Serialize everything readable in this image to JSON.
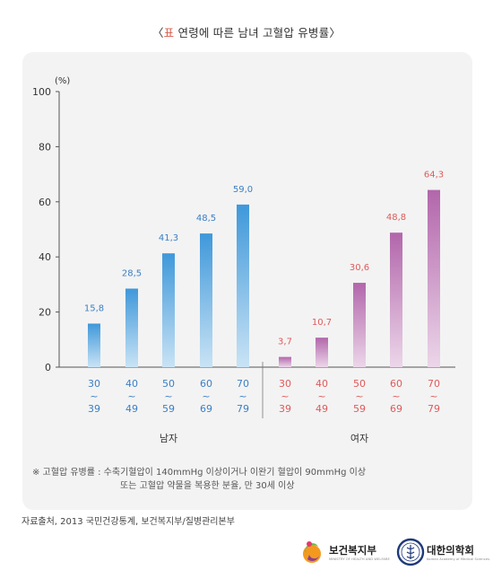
{
  "title": {
    "open": "〈",
    "marker": "표",
    "text": " 연령에 따른 남녀 고혈압 유병률",
    "close": "〉"
  },
  "colors": {
    "male_bar": "#4aa0dc",
    "female_bar": "#b468ac",
    "male_label": "#3b7fc4",
    "female_label": "#e05a5a",
    "title_marker": "#d9604f"
  },
  "chart_data": {
    "type": "bar",
    "ylabel": "(%)",
    "ylim": [
      0,
      100
    ],
    "yticks": [
      "0",
      "20",
      "40",
      "60",
      "80",
      "100"
    ],
    "groups": [
      {
        "name": "남자",
        "categories": [
          [
            "30",
            "~",
            "39"
          ],
          [
            "40",
            "~",
            "49"
          ],
          [
            "50",
            "~",
            "59"
          ],
          [
            "60",
            "~",
            "69"
          ],
          [
            "70",
            "~",
            "79"
          ]
        ],
        "values": [
          15.8,
          28.5,
          41.3,
          48.5,
          59.0
        ],
        "value_labels": [
          "15,8",
          "28,5",
          "41,3",
          "48,5",
          "59,0"
        ]
      },
      {
        "name": "여자",
        "categories": [
          [
            "30",
            "~",
            "39"
          ],
          [
            "40",
            "~",
            "49"
          ],
          [
            "50",
            "~",
            "59"
          ],
          [
            "60",
            "~",
            "69"
          ],
          [
            "70",
            "~",
            "79"
          ]
        ],
        "values": [
          3.7,
          10.7,
          30.6,
          48.8,
          64.3
        ],
        "value_labels": [
          "3,7",
          "10,7",
          "30,6",
          "48,8",
          "64,3"
        ]
      }
    ],
    "grid": false
  },
  "note": {
    "line1": "※  고혈압 유병률 : 수축기혈압이 140mmHg 이상이거나 이완기 혈압이 90mmHg 이상",
    "line2": "또는 고혈압 약물을 복용한 분율, 만 30세 이상"
  },
  "source": "자료출처, 2013 국민건강통계, 보건복지부/질병관리본부",
  "logos": {
    "ministry": "보건복지부",
    "ministry_sub": "MINISTRY OF HEALTH AND WELFARE",
    "kams": "대한의학회",
    "kams_sub": "Korean Academy of Medical Sciences"
  }
}
